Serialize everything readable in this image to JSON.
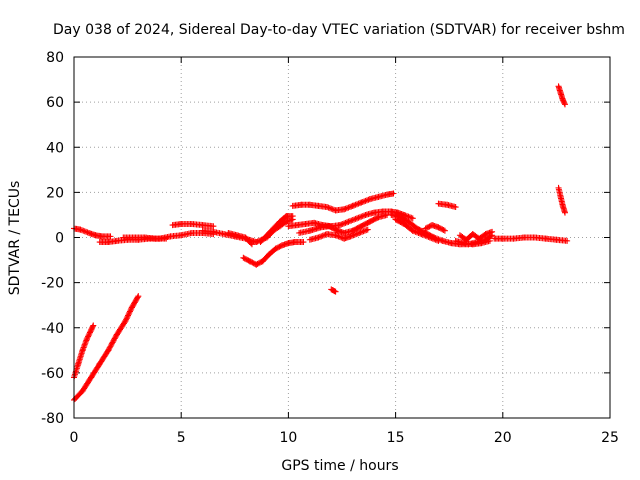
{
  "chart_data": {
    "type": "scatter",
    "title": "Day 038 of 2024, Sidereal Day-to-day VTEC variation (SDTVAR) for receiver bshm",
    "xlabel": "GPS time / hours",
    "ylabel": "SDTVAR / TECUs",
    "xlim": [
      0,
      25
    ],
    "ylim": [
      -80,
      80
    ],
    "xticks": [
      0,
      5,
      10,
      15,
      20,
      25
    ],
    "yticks": [
      -80,
      -60,
      -40,
      -20,
      0,
      20,
      40,
      60,
      80
    ],
    "grid": true,
    "marker": "+",
    "color": "#ff0000",
    "segments": [
      {
        "name": "early-arc-a",
        "points": [
          [
            0.0,
            -62
          ],
          [
            0.2,
            -56
          ],
          [
            0.4,
            -50
          ],
          [
            0.6,
            -45
          ],
          [
            0.8,
            -41
          ],
          [
            0.9,
            -39
          ]
        ]
      },
      {
        "name": "early-arc-b",
        "points": [
          [
            0.0,
            -72
          ],
          [
            0.4,
            -68
          ],
          [
            0.8,
            -62
          ],
          [
            1.2,
            -56
          ],
          [
            1.6,
            -50
          ],
          [
            2.0,
            -43
          ],
          [
            2.4,
            -37
          ],
          [
            2.7,
            -31
          ],
          [
            3.0,
            -26
          ]
        ]
      },
      {
        "name": "base-0-2",
        "points": [
          [
            0.0,
            4
          ],
          [
            0.3,
            3.5
          ],
          [
            0.7,
            2
          ],
          [
            1.0,
            1
          ],
          [
            1.3,
            0.5
          ],
          [
            1.7,
            0.5
          ]
        ]
      },
      {
        "name": "base-1-5",
        "points": [
          [
            1.2,
            -2
          ],
          [
            1.6,
            -2
          ],
          [
            2.0,
            -1.5
          ],
          [
            2.5,
            -1
          ],
          [
            3.0,
            -1
          ],
          [
            3.5,
            -0.5
          ],
          [
            4.0,
            -0.5
          ],
          [
            4.5,
            0.5
          ],
          [
            5.0,
            1
          ],
          [
            5.5,
            2
          ],
          [
            6.0,
            2
          ],
          [
            6.5,
            1.5
          ]
        ]
      },
      {
        "name": "base-2-5",
        "points": [
          [
            2.3,
            0
          ],
          [
            2.8,
            0
          ],
          [
            3.3,
            0
          ],
          [
            3.8,
            -0.5
          ],
          [
            4.3,
            -0.5
          ]
        ]
      },
      {
        "name": "bump-5-6",
        "points": [
          [
            4.6,
            5.5
          ],
          [
            5.0,
            6
          ],
          [
            5.5,
            6
          ],
          [
            6.0,
            5.5
          ],
          [
            6.5,
            5
          ]
        ]
      },
      {
        "name": "mid-6-9",
        "points": [
          [
            6.0,
            3
          ],
          [
            6.5,
            2.5
          ],
          [
            7.0,
            1.5
          ],
          [
            7.5,
            0.5
          ],
          [
            8.0,
            -0.5
          ],
          [
            8.5,
            -2
          ],
          [
            9.0,
            0
          ],
          [
            9.3,
            3
          ],
          [
            9.6,
            5
          ],
          [
            9.9,
            7
          ],
          [
            10.2,
            8
          ]
        ]
      },
      {
        "name": "mid-7-8",
        "points": [
          [
            7.2,
            2
          ],
          [
            7.6,
            1
          ],
          [
            8.0,
            0
          ],
          [
            8.3,
            -3
          ]
        ]
      },
      {
        "name": "dip-8",
        "points": [
          [
            7.9,
            -9
          ],
          [
            8.2,
            -10.5
          ],
          [
            8.5,
            -12
          ],
          [
            8.8,
            -10.5
          ],
          [
            9.1,
            -7.5
          ],
          [
            9.4,
            -5
          ],
          [
            9.7,
            -3.5
          ],
          [
            10.0,
            -2.5
          ],
          [
            10.3,
            -2
          ],
          [
            10.7,
            -2
          ]
        ]
      },
      {
        "name": "rise-9-10",
        "points": [
          [
            8.7,
            -2
          ],
          [
            9.0,
            1
          ],
          [
            9.3,
            4
          ],
          [
            9.6,
            7
          ],
          [
            9.9,
            9.5
          ],
          [
            10.2,
            9.5
          ]
        ]
      },
      {
        "name": "upper-10-12",
        "points": [
          [
            10.2,
            14
          ],
          [
            10.6,
            14.5
          ],
          [
            11.0,
            14.5
          ],
          [
            11.4,
            14
          ],
          [
            11.8,
            13.5
          ],
          [
            12.2,
            12
          ],
          [
            12.6,
            12.5
          ],
          [
            13.0,
            14
          ],
          [
            13.4,
            15.5
          ],
          [
            13.8,
            17
          ],
          [
            14.2,
            18
          ],
          [
            14.6,
            19
          ],
          [
            14.9,
            19.5
          ]
        ]
      },
      {
        "name": "mid-10-13",
        "points": [
          [
            10.0,
            5
          ],
          [
            10.4,
            5.5
          ],
          [
            10.8,
            6
          ],
          [
            11.2,
            6.5
          ],
          [
            11.6,
            5.5
          ],
          [
            12.0,
            5
          ],
          [
            12.4,
            5.5
          ],
          [
            12.8,
            7
          ],
          [
            13.2,
            8.5
          ],
          [
            13.6,
            10
          ],
          [
            14.0,
            11
          ],
          [
            14.4,
            11.5
          ],
          [
            14.8,
            11.5
          ],
          [
            15.1,
            11
          ],
          [
            15.4,
            10
          ],
          [
            15.8,
            8.5
          ]
        ]
      },
      {
        "name": "low-11-13",
        "points": [
          [
            10.5,
            2
          ],
          [
            11.0,
            3
          ],
          [
            11.5,
            4.5
          ],
          [
            11.9,
            5
          ],
          [
            12.3,
            3
          ],
          [
            12.6,
            2
          ],
          [
            13.0,
            3
          ],
          [
            13.4,
            5
          ],
          [
            13.8,
            7
          ],
          [
            14.2,
            9
          ],
          [
            14.6,
            10
          ]
        ]
      },
      {
        "name": "lower-11-13",
        "points": [
          [
            11.0,
            -1
          ],
          [
            11.4,
            0
          ],
          [
            11.8,
            1.5
          ],
          [
            12.2,
            1
          ],
          [
            12.6,
            -0.5
          ],
          [
            12.9,
            0.5
          ],
          [
            13.3,
            2
          ],
          [
            13.7,
            3.5
          ]
        ]
      },
      {
        "name": "point-12",
        "points": [
          [
            12.0,
            -23
          ],
          [
            12.2,
            -24
          ]
        ]
      },
      {
        "name": "descent-15-18",
        "points": [
          [
            14.8,
            10
          ],
          [
            15.2,
            9
          ],
          [
            15.6,
            7
          ],
          [
            16.0,
            4
          ],
          [
            16.4,
            2
          ],
          [
            16.8,
            0
          ],
          [
            17.2,
            -1.5
          ],
          [
            17.6,
            -2.5
          ],
          [
            18.0,
            -3
          ],
          [
            18.4,
            -3
          ],
          [
            18.8,
            -2
          ],
          [
            19.2,
            -1
          ],
          [
            19.5,
            1
          ]
        ]
      },
      {
        "name": "descent-b",
        "points": [
          [
            15.0,
            8
          ],
          [
            15.4,
            6
          ],
          [
            15.8,
            3
          ],
          [
            16.2,
            1.5
          ],
          [
            16.6,
            0
          ],
          [
            17.0,
            -1.5
          ]
        ]
      },
      {
        "name": "short-16-17",
        "points": [
          [
            16.4,
            4
          ],
          [
            16.7,
            5.5
          ],
          [
            17.0,
            4.5
          ],
          [
            17.3,
            3
          ]
        ]
      },
      {
        "name": "upper-17",
        "points": [
          [
            17.0,
            15
          ],
          [
            17.4,
            14.5
          ],
          [
            17.8,
            13.5
          ]
        ]
      },
      {
        "name": "low-18-19",
        "points": [
          [
            17.8,
            -1.5
          ],
          [
            18.2,
            -2.5
          ],
          [
            18.6,
            -3
          ],
          [
            19.0,
            -2.5
          ],
          [
            19.4,
            -1.5
          ]
        ]
      },
      {
        "name": "wiggle-18-19",
        "points": [
          [
            18.0,
            1
          ],
          [
            18.3,
            -1
          ],
          [
            18.6,
            1.5
          ],
          [
            18.9,
            -0.5
          ],
          [
            19.2,
            1.5
          ],
          [
            19.5,
            2.5
          ]
        ]
      },
      {
        "name": "tail-20-23",
        "points": [
          [
            19.6,
            -0.5
          ],
          [
            20.0,
            -0.5
          ],
          [
            20.5,
            -0.5
          ],
          [
            21.0,
            0
          ],
          [
            21.5,
            0
          ],
          [
            22.0,
            -0.5
          ],
          [
            22.5,
            -1
          ],
          [
            23.0,
            -1.5
          ]
        ]
      },
      {
        "name": "high-22-23-a",
        "points": [
          [
            22.6,
            67
          ],
          [
            22.7,
            64
          ],
          [
            22.8,
            61
          ],
          [
            22.9,
            59
          ]
        ]
      },
      {
        "name": "high-22-23-b",
        "points": [
          [
            22.6,
            22
          ],
          [
            22.7,
            18
          ],
          [
            22.8,
            14
          ],
          [
            22.9,
            11
          ]
        ]
      }
    ]
  }
}
